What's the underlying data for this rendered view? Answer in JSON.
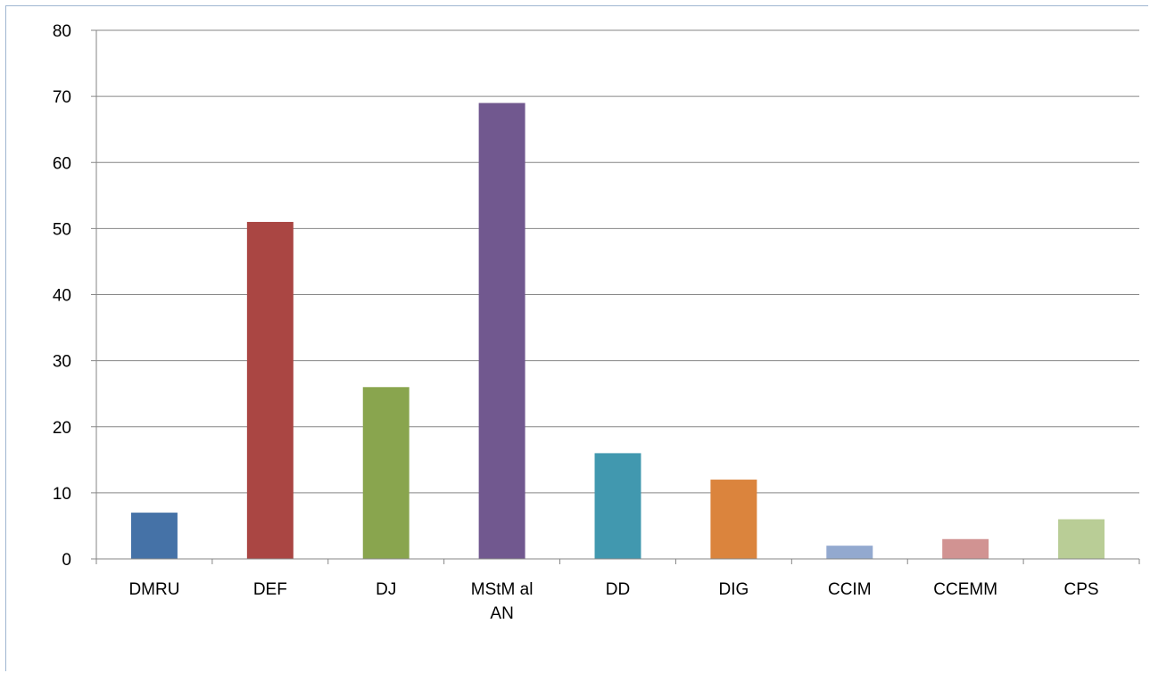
{
  "chart_data": {
    "type": "bar",
    "title": "",
    "xlabel": "",
    "ylabel": "",
    "ylim": [
      0,
      80
    ],
    "yticks": [
      0,
      10,
      20,
      30,
      40,
      50,
      60,
      70,
      80
    ],
    "grid": true,
    "legend": "none",
    "categories": [
      [
        "DMRU"
      ],
      [
        "DEF"
      ],
      [
        "DJ"
      ],
      [
        "MStM al",
        "AN"
      ],
      [
        "DD"
      ],
      [
        "DIG"
      ],
      [
        "CCIM"
      ],
      [
        "CCEMM"
      ],
      [
        "CPS"
      ]
    ],
    "values": [
      7,
      51,
      26,
      69,
      16,
      12,
      2,
      3,
      6
    ],
    "colors": [
      "#4572a7",
      "#aa4643",
      "#89a54e",
      "#71588f",
      "#4198af",
      "#db843d",
      "#93a9cf",
      "#d19392",
      "#b9cd96"
    ]
  }
}
